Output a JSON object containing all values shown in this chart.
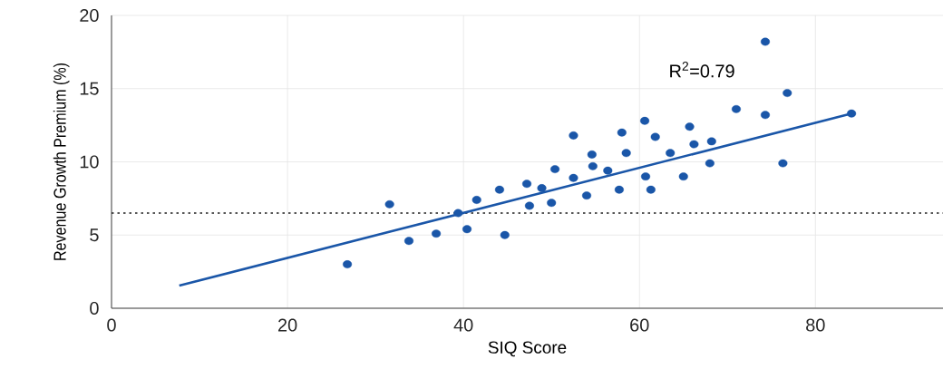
{
  "chart_data": {
    "type": "scatter",
    "xlabel": "SIQ Score",
    "ylabel": "Revenue Growth Premium (%)",
    "xlim": [
      0,
      94.5
    ],
    "ylim": [
      0,
      20
    ],
    "xticks": [
      0,
      20,
      40,
      60,
      80
    ],
    "yticks": [
      0,
      5,
      10,
      15,
      20
    ],
    "grid": true,
    "series": [
      {
        "marker": "circle",
        "color": "#1a56a8",
        "x": [
          26.8,
          31.6,
          33.8,
          36.9,
          39.4,
          40.4,
          41.5,
          44.1,
          44.7,
          47.2,
          47.5,
          48.9,
          50.0,
          50.4,
          52.5,
          52.5,
          54.0,
          54.6,
          54.7,
          56.4,
          57.7,
          58.0,
          58.5,
          60.6,
          60.7,
          61.3,
          61.8,
          63.5,
          65.0,
          65.7,
          66.2,
          68.2,
          68.0,
          71.0,
          74.3,
          74.3,
          76.3,
          76.8,
          84.1
        ],
        "values": [
          3.0,
          7.1,
          4.6,
          5.1,
          6.5,
          5.4,
          7.4,
          8.1,
          5.0,
          8.5,
          7.0,
          8.2,
          7.2,
          9.5,
          11.8,
          8.9,
          7.7,
          10.5,
          9.7,
          9.4,
          8.1,
          12.0,
          10.6,
          12.8,
          9.0,
          8.1,
          11.7,
          10.6,
          9.0,
          12.4,
          11.2,
          11.4,
          9.9,
          13.6,
          13.2,
          18.2,
          9.9,
          14.7,
          13.3
        ]
      },
      {
        "type": "line",
        "marker": "none",
        "color": "#1a56a8",
        "x": [
          7.7,
          84.1
        ],
        "values": [
          1.55,
          13.3
        ]
      }
    ],
    "ref_lines": [
      {
        "axis": "y",
        "value": 6.5,
        "color": "#222222",
        "line_style": "dotted"
      }
    ],
    "annotations": [
      "R$^{2}$=0.79"
    ]
  }
}
